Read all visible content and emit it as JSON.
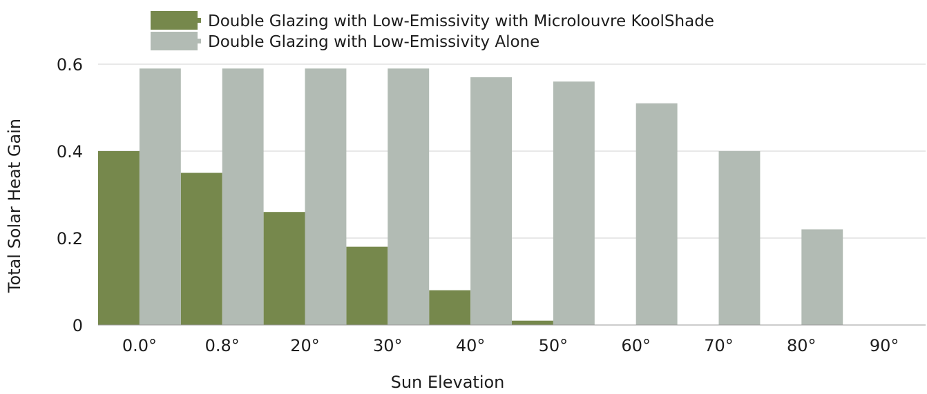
{
  "chart_data": {
    "type": "bar",
    "title": "",
    "xlabel": "Sun Elevation",
    "ylabel": "Total Solar Heat Gain",
    "categories": [
      "0.0°",
      "0.8°",
      "20°",
      "30°",
      "40°",
      "50°",
      "60°",
      "70°",
      "80°",
      "90°"
    ],
    "ylim": [
      0,
      0.6
    ],
    "yticks": [
      0,
      0.2,
      0.4,
      0.6
    ],
    "ytick_labels": [
      "0",
      "0.2",
      "0.4",
      "0.6"
    ],
    "grid": true,
    "legend_position": "top",
    "series": [
      {
        "name": "Double Glazing with Low-Emissivity with Microlouvre KoolShade",
        "color": "#76884c",
        "values": [
          0.4,
          0.35,
          0.26,
          0.18,
          0.08,
          0.01,
          0,
          0,
          0,
          0
        ]
      },
      {
        "name": "Double Glazing with Low-Emissivity Alone",
        "color": "#b2bbb4",
        "values": [
          0.59,
          0.59,
          0.59,
          0.59,
          0.57,
          0.56,
          0.51,
          0.4,
          0.22,
          0
        ]
      }
    ]
  }
}
